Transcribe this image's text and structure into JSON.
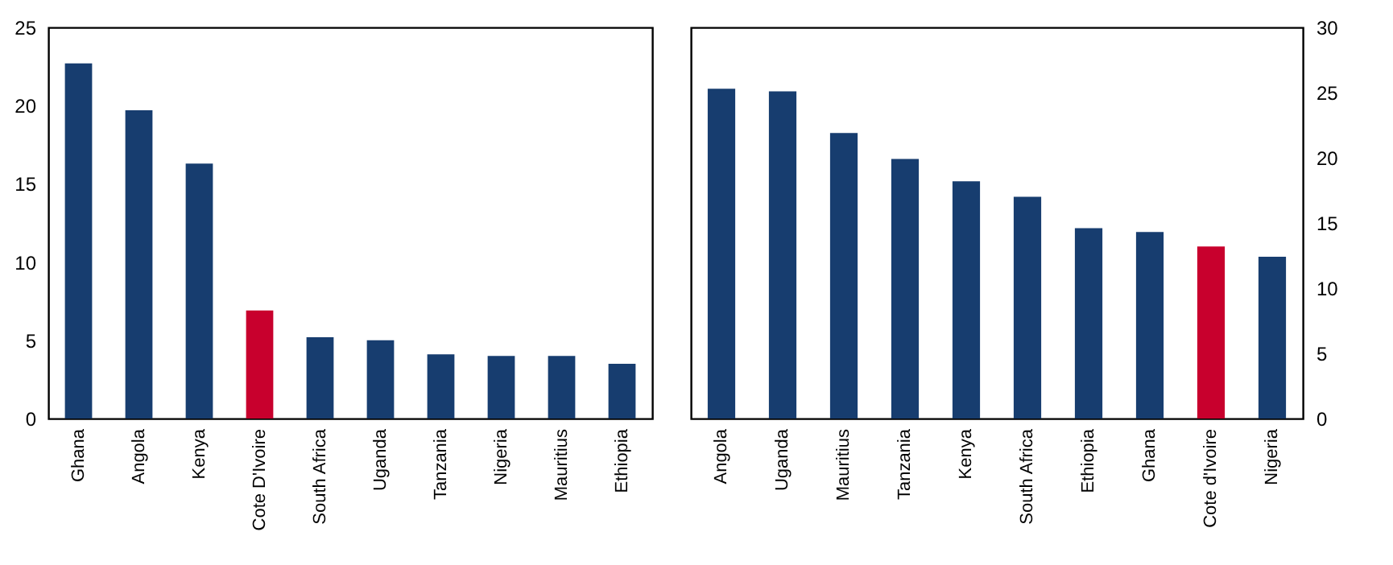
{
  "chart_data": [
    {
      "type": "bar",
      "categories": [
        "Ghana",
        "Angola",
        "Kenya",
        "Cote D'Ivoire",
        "South Africa",
        "Uganda",
        "Tanzania",
        "Nigeria",
        "Mauritius",
        "Ethiopia"
      ],
      "series": [
        {
          "values": [
            22.7,
            19.7,
            16.3,
            6.9,
            5.2,
            5.0,
            4.1,
            4.0,
            4.0,
            3.5
          ]
        }
      ],
      "colors": [
        "#173d6f",
        "#173d6f",
        "#173d6f",
        "#c8002d",
        "#173d6f",
        "#173d6f",
        "#173d6f",
        "#173d6f",
        "#173d6f",
        "#173d6f"
      ],
      "ylim": [
        0,
        25
      ],
      "yticks": [
        0,
        5,
        10,
        15,
        20,
        25
      ],
      "grid": false
    },
    {
      "type": "bar",
      "categories": [
        "Angola",
        "Uganda",
        "Mauritius",
        "Tanzania",
        "Kenya",
        "South Africa",
        "Ethiopia",
        "Ghana",
        "Cote d'Ivoire",
        "Nigeria"
      ],
      "series": [
        {
          "values": [
            25.3,
            25.1,
            21.9,
            19.9,
            18.2,
            17.0,
            14.6,
            14.3,
            13.2,
            12.4
          ],
          "axis": "y2"
        }
      ],
      "colors": [
        "#173d6f",
        "#173d6f",
        "#173d6f",
        "#173d6f",
        "#173d6f",
        "#173d6f",
        "#173d6f",
        "#173d6f",
        "#c8002d",
        "#173d6f"
      ],
      "y2lim": [
        0,
        30
      ],
      "y2ticks": [
        0,
        5,
        10,
        15,
        20,
        25,
        30
      ],
      "grid": false
    }
  ]
}
